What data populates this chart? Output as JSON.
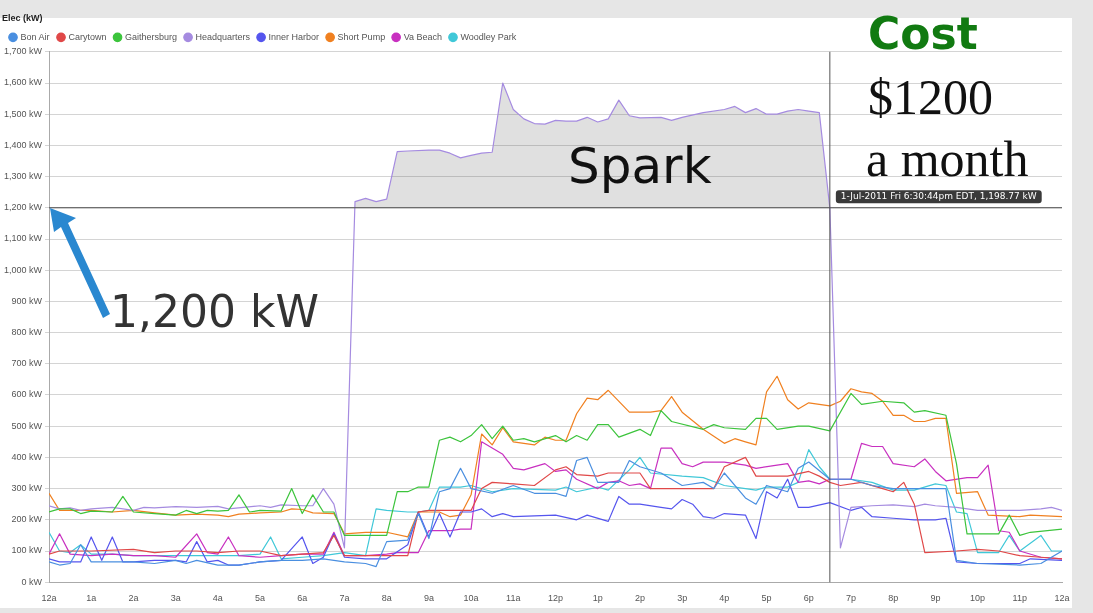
{
  "chart_data": {
    "type": "line",
    "legend_title": "Elec (kW)",
    "legend": "top left",
    "grid": "y",
    "marker": "none",
    "xlim": [
      "2011-07-01T00:00",
      "2011-07-02T00:00"
    ],
    "xticks": [
      {
        "value": "2011-07-01T00:00",
        "label": "12a"
      },
      {
        "value": "2011-07-01T01:00",
        "label": "1a"
      },
      {
        "value": "2011-07-01T02:00",
        "label": "2a"
      },
      {
        "value": "2011-07-01T03:00",
        "label": "3a"
      },
      {
        "value": "2011-07-01T04:00",
        "label": "4a"
      },
      {
        "value": "2011-07-01T05:00",
        "label": "5a"
      },
      {
        "value": "2011-07-01T06:00",
        "label": "6a"
      },
      {
        "value": "2011-07-01T07:00",
        "label": "7a"
      },
      {
        "value": "2011-07-01T08:00",
        "label": "8a"
      },
      {
        "value": "2011-07-01T09:00",
        "label": "9a"
      },
      {
        "value": "2011-07-01T10:00",
        "label": "10a"
      },
      {
        "value": "2011-07-01T11:00",
        "label": "11a"
      },
      {
        "value": "2011-07-01T12:00",
        "label": "12p"
      },
      {
        "value": "2011-07-01T13:00",
        "label": "1p"
      },
      {
        "value": "2011-07-01T14:00",
        "label": "2p"
      },
      {
        "value": "2011-07-01T15:00",
        "label": "3p"
      },
      {
        "value": "2011-07-01T16:00",
        "label": "4p"
      },
      {
        "value": "2011-07-01T17:00",
        "label": "5p"
      },
      {
        "value": "2011-07-01T18:00",
        "label": "6p"
      },
      {
        "value": "2011-07-01T19:00",
        "label": "7p"
      },
      {
        "value": "2011-07-01T20:00",
        "label": "8p"
      },
      {
        "value": "2011-07-01T21:00",
        "label": "9p"
      },
      {
        "value": "2011-07-01T22:00",
        "label": "10p"
      },
      {
        "value": "2011-07-01T23:00",
        "label": "11p"
      },
      {
        "value": "2011-07-02T00:00",
        "label": "12a"
      }
    ],
    "ylim": [
      0,
      1700
    ],
    "yticks": [
      {
        "value": 0,
        "label": "0 kW"
      },
      {
        "value": 100,
        "label": "100 kW"
      },
      {
        "value": 200,
        "label": "200 kW"
      },
      {
        "value": 300,
        "label": "300 kW"
      },
      {
        "value": 400,
        "label": "400 kW"
      },
      {
        "value": 500,
        "label": "500 kW"
      },
      {
        "value": 600,
        "label": "600 kW"
      },
      {
        "value": 700,
        "label": "700 kW"
      },
      {
        "value": 800,
        "label": "800 kW"
      },
      {
        "value": 900,
        "label": "900 kW"
      },
      {
        "value": 1000,
        "label": "1,000 kW"
      },
      {
        "value": 1100,
        "label": "1,100 kW"
      },
      {
        "value": 1200,
        "label": "1,200 kW"
      },
      {
        "value": 1300,
        "label": "1,300 kW"
      },
      {
        "value": 1400,
        "label": "1,400 kW"
      },
      {
        "value": 1500,
        "label": "1,500 kW"
      },
      {
        "value": 1600,
        "label": "1,600 kW"
      },
      {
        "value": 1700,
        "label": "1,700 kW"
      }
    ],
    "series": [
      {
        "name": "Bon Air",
        "color": "#4a8fe0",
        "x": [
          "2011-07-01T00:00",
          "2011-07-01T00:15",
          "2011-07-01T00:30",
          "2011-07-01T00:45",
          "2011-07-01T01:00",
          "2011-07-01T01:30",
          "2011-07-01T02:00",
          "2011-07-01T02:30",
          "2011-07-01T03:00",
          "2011-07-01T03:15",
          "2011-07-01T03:30",
          "2011-07-01T04:00",
          "2011-07-01T04:30",
          "2011-07-01T05:00",
          "2011-07-01T05:30",
          "2011-07-01T06:00",
          "2011-07-01T06:30",
          "2011-07-01T07:00",
          "2011-07-01T07:30",
          "2011-07-01T07:45",
          "2011-07-01T08:00",
          "2011-07-01T08:30",
          "2011-07-01T08:45",
          "2011-07-01T09:00",
          "2011-07-01T09:15",
          "2011-07-01T09:30",
          "2011-07-01T09:45",
          "2011-07-01T10:00",
          "2011-07-01T10:30",
          "2011-07-01T11:00",
          "2011-07-01T11:30",
          "2011-07-01T12:00",
          "2011-07-01T12:15",
          "2011-07-01T12:30",
          "2011-07-01T12:45",
          "2011-07-01T13:00",
          "2011-07-01T13:30",
          "2011-07-01T13:45",
          "2011-07-01T14:00",
          "2011-07-01T14:30",
          "2011-07-01T15:00",
          "2011-07-01T15:30",
          "2011-07-01T15:45",
          "2011-07-01T16:00",
          "2011-07-01T16:30",
          "2011-07-01T16:45",
          "2011-07-01T17:00",
          "2011-07-01T17:30",
          "2011-07-01T17:45",
          "2011-07-01T18:00",
          "2011-07-01T18:30",
          "2011-07-01T19:00",
          "2011-07-01T19:30",
          "2011-07-01T20:00",
          "2011-07-01T20:30",
          "2011-07-01T21:00",
          "2011-07-01T21:15",
          "2011-07-01T21:30",
          "2011-07-01T22:00",
          "2011-07-01T23:00",
          "2011-07-01T23:30",
          "2011-07-02T00:00"
        ],
        "values": [
          65,
          55,
          60,
          120,
          65,
          65,
          65,
          60,
          70,
          60,
          70,
          55,
          55,
          65,
          70,
          70,
          75,
          65,
          60,
          50,
          130,
          135,
          220,
          140,
          290,
          300,
          365,
          300,
          285,
          310,
          285,
          285,
          275,
          390,
          400,
          320,
          320,
          390,
          370,
          350,
          310,
          320,
          300,
          350,
          270,
          250,
          310,
          290,
          365,
          385,
          330,
          330,
          310,
          300,
          300,
          300,
          300,
          70,
          60,
          55,
          60,
          100
        ]
      },
      {
        "name": "Carytown",
        "color": "#e04848",
        "x": [
          "2011-07-01T00:00",
          "2011-07-01T00:15",
          "2011-07-01T01:00",
          "2011-07-01T02:00",
          "2011-07-01T02:30",
          "2011-07-01T03:00",
          "2011-07-01T03:30",
          "2011-07-01T04:00",
          "2011-07-01T04:30",
          "2011-07-01T05:00",
          "2011-07-01T05:30",
          "2011-07-01T06:00",
          "2011-07-01T06:30",
          "2011-07-01T06:45",
          "2011-07-01T07:00",
          "2011-07-01T07:30",
          "2011-07-01T08:00",
          "2011-07-01T08:30",
          "2011-07-01T08:45",
          "2011-07-01T09:00",
          "2011-07-01T09:30",
          "2011-07-01T10:00",
          "2011-07-01T10:15",
          "2011-07-01T10:30",
          "2011-07-01T11:00",
          "2011-07-01T11:30",
          "2011-07-01T12:00",
          "2011-07-01T12:15",
          "2011-07-01T12:30",
          "2011-07-01T13:00",
          "2011-07-01T13:15",
          "2011-07-01T14:00",
          "2011-07-01T14:15",
          "2011-07-01T15:00",
          "2011-07-01T15:45",
          "2011-07-01T16:00",
          "2011-07-01T16:30",
          "2011-07-01T16:45",
          "2011-07-01T17:30",
          "2011-07-01T18:00",
          "2011-07-01T18:15",
          "2011-07-01T18:30",
          "2011-07-01T18:45",
          "2011-07-01T19:15",
          "2011-07-01T19:45",
          "2011-07-01T20:00",
          "2011-07-01T20:15",
          "2011-07-01T20:30",
          "2011-07-01T20:45",
          "2011-07-01T21:30",
          "2011-07-01T22:00",
          "2011-07-01T22:30",
          "2011-07-01T23:00",
          "2011-07-01T23:30",
          "2011-07-02T00:00"
        ],
        "values": [
          90,
          100,
          100,
          105,
          95,
          100,
          100,
          95,
          100,
          100,
          85,
          90,
          95,
          150,
          85,
          85,
          85,
          85,
          225,
          230,
          230,
          230,
          300,
          320,
          315,
          310,
          360,
          370,
          345,
          340,
          350,
          350,
          300,
          300,
          300,
          370,
          400,
          340,
          340,
          355,
          340,
          320,
          310,
          320,
          300,
          290,
          320,
          250,
          95,
          100,
          105,
          100,
          85,
          80,
          75
        ]
      },
      {
        "name": "Gaithersburg",
        "color": "#3cc43c",
        "x": [
          "2011-07-01T00:00",
          "2011-07-01T00:15",
          "2011-07-01T00:30",
          "2011-07-01T00:45",
          "2011-07-01T01:00",
          "2011-07-01T01:30",
          "2011-07-01T01:45",
          "2011-07-01T02:00",
          "2011-07-01T02:30",
          "2011-07-01T03:00",
          "2011-07-01T03:15",
          "2011-07-01T03:30",
          "2011-07-01T03:45",
          "2011-07-01T04:00",
          "2011-07-01T04:15",
          "2011-07-01T04:30",
          "2011-07-01T04:45",
          "2011-07-01T05:00",
          "2011-07-01T05:30",
          "2011-07-01T05:45",
          "2011-07-01T06:00",
          "2011-07-01T06:15",
          "2011-07-01T06:30",
          "2011-07-01T06:45",
          "2011-07-01T07:00",
          "2011-07-01T07:30",
          "2011-07-01T08:00",
          "2011-07-01T08:15",
          "2011-07-01T08:30",
          "2011-07-01T08:45",
          "2011-07-01T09:00",
          "2011-07-01T09:15",
          "2011-07-01T09:30",
          "2011-07-01T09:45",
          "2011-07-01T10:00",
          "2011-07-01T10:15",
          "2011-07-01T10:30",
          "2011-07-01T10:45",
          "2011-07-01T11:00",
          "2011-07-01T11:15",
          "2011-07-01T11:30",
          "2011-07-01T12:00",
          "2011-07-01T12:15",
          "2011-07-01T12:30",
          "2011-07-01T12:45",
          "2011-07-01T13:00",
          "2011-07-01T13:15",
          "2011-07-01T13:30",
          "2011-07-01T14:00",
          "2011-07-01T14:15",
          "2011-07-01T14:30",
          "2011-07-01T14:45",
          "2011-07-01T15:30",
          "2011-07-01T15:45",
          "2011-07-01T16:00",
          "2011-07-01T16:30",
          "2011-07-01T16:45",
          "2011-07-01T17:00",
          "2011-07-01T17:15",
          "2011-07-01T17:45",
          "2011-07-01T18:00",
          "2011-07-01T18:30",
          "2011-07-01T19:00",
          "2011-07-01T19:15",
          "2011-07-01T19:45",
          "2011-07-01T20:15",
          "2011-07-01T20:30",
          "2011-07-01T20:45",
          "2011-07-01T21:15",
          "2011-07-01T21:30",
          "2011-07-01T21:45",
          "2011-07-01T22:30",
          "2011-07-01T22:45",
          "2011-07-01T23:00",
          "2011-07-01T23:15",
          "2011-07-02T00:00"
        ],
        "values": [
          225,
          235,
          235,
          220,
          228,
          225,
          275,
          225,
          220,
          215,
          230,
          220,
          230,
          228,
          230,
          280,
          225,
          230,
          228,
          300,
          220,
          280,
          225,
          225,
          150,
          150,
          150,
          290,
          290,
          305,
          305,
          455,
          465,
          450,
          470,
          505,
          460,
          500,
          455,
          460,
          450,
          470,
          450,
          470,
          455,
          505,
          505,
          465,
          490,
          470,
          550,
          515,
          490,
          505,
          495,
          490,
          525,
          525,
          490,
          500,
          500,
          485,
          605,
          570,
          580,
          575,
          545,
          550,
          535,
          380,
          155,
          155,
          215,
          150,
          160,
          170
        ]
      },
      {
        "name": "Headquarters",
        "color": "#a58be0",
        "x": [
          "2011-07-01T00:00",
          "2011-07-01T00:15",
          "2011-07-01T00:30",
          "2011-07-01T00:45",
          "2011-07-01T01:00",
          "2011-07-01T01:30",
          "2011-07-01T02:00",
          "2011-07-01T02:15",
          "2011-07-01T02:30",
          "2011-07-01T03:00",
          "2011-07-01T03:30",
          "2011-07-01T04:00",
          "2011-07-01T04:15",
          "2011-07-01T05:00",
          "2011-07-01T05:15",
          "2011-07-01T05:30",
          "2011-07-01T06:00",
          "2011-07-01T06:15",
          "2011-07-01T06:30",
          "2011-07-01T06:45",
          "2011-07-01T07:00",
          "2011-07-01T07:15",
          "2011-07-01T07:30",
          "2011-07-01T07:45",
          "2011-07-01T08:00",
          "2011-07-01T08:15",
          "2011-07-01T08:30",
          "2011-07-01T09:00",
          "2011-07-01T09:15",
          "2011-07-01T09:30",
          "2011-07-01T09:45",
          "2011-07-01T10:00",
          "2011-07-01T10:15",
          "2011-07-01T10:30",
          "2011-07-01T10:45",
          "2011-07-01T11:00",
          "2011-07-01T11:15",
          "2011-07-01T11:30",
          "2011-07-01T11:45",
          "2011-07-01T12:00",
          "2011-07-01T12:15",
          "2011-07-01T12:30",
          "2011-07-01T12:45",
          "2011-07-01T13:00",
          "2011-07-01T13:15",
          "2011-07-01T13:30",
          "2011-07-01T13:45",
          "2011-07-01T14:00",
          "2011-07-01T14:30",
          "2011-07-01T14:45",
          "2011-07-01T15:00",
          "2011-07-01T15:30",
          "2011-07-01T16:00",
          "2011-07-01T16:15",
          "2011-07-01T16:30",
          "2011-07-01T16:45",
          "2011-07-01T17:00",
          "2011-07-01T17:15",
          "2011-07-01T17:30",
          "2011-07-01T17:45",
          "2011-07-01T18:00",
          "2011-07-01T18:15",
          "2011-07-01T18:30",
          "2011-07-01T18:45",
          "2011-07-01T19:00",
          "2011-07-01T19:30",
          "2011-07-01T20:00",
          "2011-07-01T20:30",
          "2011-07-01T20:45",
          "2011-07-01T21:00",
          "2011-07-01T21:30",
          "2011-07-01T22:00",
          "2011-07-01T23:00",
          "2011-07-01T23:30",
          "2011-07-01T23:45",
          "2011-07-02T00:00"
        ],
        "values": [
          245,
          235,
          238,
          230,
          235,
          240,
          230,
          240,
          238,
          242,
          240,
          243,
          235,
          245,
          240,
          248,
          245,
          245,
          300,
          250,
          110,
          1220,
          1230,
          1220,
          1228,
          1380,
          1382,
          1385,
          1385,
          1375,
          1360,
          1368,
          1375,
          1378,
          1600,
          1515,
          1485,
          1470,
          1468,
          1480,
          1478,
          1478,
          1490,
          1475,
          1485,
          1545,
          1495,
          1488,
          1490,
          1480,
          1490,
          1505,
          1515,
          1525,
          1505,
          1518,
          1500,
          1500,
          1510,
          1515,
          1510,
          1505,
          1199,
          110,
          240,
          245,
          248,
          242,
          250,
          245,
          240,
          230,
          230,
          235,
          240,
          230
        ]
      },
      {
        "name": "Inner Harbor",
        "color": "#5555ee",
        "x": [
          "2011-07-01T00:00",
          "2011-07-01T00:15",
          "2011-07-01T00:45",
          "2011-07-01T01:00",
          "2011-07-01T01:15",
          "2011-07-01T01:30",
          "2011-07-01T01:45",
          "2011-07-01T02:00",
          "2011-07-01T02:30",
          "2011-07-01T03:00",
          "2011-07-01T03:15",
          "2011-07-01T03:30",
          "2011-07-01T03:45",
          "2011-07-01T04:00",
          "2011-07-01T04:15",
          "2011-07-01T04:30",
          "2011-07-01T05:00",
          "2011-07-01T05:30",
          "2011-07-01T06:00",
          "2011-07-01T06:15",
          "2011-07-01T06:30",
          "2011-07-01T06:45",
          "2011-07-01T07:00",
          "2011-07-01T07:30",
          "2011-07-01T08:00",
          "2011-07-01T08:30",
          "2011-07-01T08:45",
          "2011-07-01T09:00",
          "2011-07-01T09:15",
          "2011-07-01T09:30",
          "2011-07-01T09:45",
          "2011-07-01T10:00",
          "2011-07-01T10:15",
          "2011-07-01T10:30",
          "2011-07-01T10:45",
          "2011-07-01T11:00",
          "2011-07-01T12:00",
          "2011-07-01T12:30",
          "2011-07-01T12:45",
          "2011-07-01T13:15",
          "2011-07-01T13:30",
          "2011-07-01T13:45",
          "2011-07-01T14:00",
          "2011-07-01T14:30",
          "2011-07-01T14:45",
          "2011-07-01T15:00",
          "2011-07-01T15:15",
          "2011-07-01T15:30",
          "2011-07-01T15:45",
          "2011-07-01T16:00",
          "2011-07-01T16:30",
          "2011-07-01T16:45",
          "2011-07-01T17:00",
          "2011-07-01T17:15",
          "2011-07-01T17:30",
          "2011-07-01T17:45",
          "2011-07-01T18:00",
          "2011-07-01T18:30",
          "2011-07-01T19:00",
          "2011-07-01T19:15",
          "2011-07-01T19:30",
          "2011-07-01T20:00",
          "2011-07-01T20:30",
          "2011-07-01T21:00",
          "2011-07-01T21:15",
          "2011-07-01T21:30",
          "2011-07-01T22:00",
          "2011-07-01T23:00",
          "2011-07-01T23:15",
          "2011-07-02T00:00"
        ],
        "values": [
          75,
          65,
          65,
          145,
          70,
          145,
          65,
          65,
          70,
          70,
          65,
          130,
          65,
          70,
          55,
          55,
          65,
          70,
          145,
          60,
          80,
          155,
          80,
          75,
          75,
          120,
          225,
          145,
          220,
          145,
          225,
          225,
          235,
          210,
          220,
          210,
          215,
          200,
          215,
          195,
          275,
          250,
          250,
          240,
          235,
          265,
          250,
          210,
          205,
          220,
          215,
          140,
          290,
          270,
          330,
          240,
          240,
          255,
          230,
          240,
          210,
          205,
          200,
          200,
          205,
          65,
          60,
          60,
          75,
          70
        ]
      },
      {
        "name": "Short Pump",
        "color": "#f08020",
        "x": [
          "2011-07-01T00:00",
          "2011-07-01T00:15",
          "2011-07-01T01:00",
          "2011-07-01T01:30",
          "2011-07-01T02:00",
          "2011-07-01T02:30",
          "2011-07-01T03:00",
          "2011-07-01T03:30",
          "2011-07-01T04:00",
          "2011-07-01T04:15",
          "2011-07-01T04:30",
          "2011-07-01T05:00",
          "2011-07-01T05:30",
          "2011-07-01T05:45",
          "2011-07-01T06:00",
          "2011-07-01T06:15",
          "2011-07-01T06:45",
          "2011-07-01T07:00",
          "2011-07-01T07:30",
          "2011-07-01T08:00",
          "2011-07-01T08:30",
          "2011-07-01T08:45",
          "2011-07-01T09:15",
          "2011-07-01T09:30",
          "2011-07-01T09:45",
          "2011-07-01T10:00",
          "2011-07-01T10:15",
          "2011-07-01T10:30",
          "2011-07-01T10:45",
          "2011-07-01T11:00",
          "2011-07-01T11:30",
          "2011-07-01T11:45",
          "2011-07-01T12:00",
          "2011-07-01T12:15",
          "2011-07-01T12:30",
          "2011-07-01T12:45",
          "2011-07-01T13:00",
          "2011-07-01T13:15",
          "2011-07-01T13:45",
          "2011-07-01T14:15",
          "2011-07-01T14:30",
          "2011-07-01T14:45",
          "2011-07-01T15:00",
          "2011-07-01T15:30",
          "2011-07-01T16:00",
          "2011-07-01T16:15",
          "2011-07-01T16:30",
          "2011-07-01T16:45",
          "2011-07-01T17:00",
          "2011-07-01T17:15",
          "2011-07-01T17:30",
          "2011-07-01T17:45",
          "2011-07-01T18:00",
          "2011-07-01T18:30",
          "2011-07-01T18:45",
          "2011-07-01T19:00",
          "2011-07-01T19:15",
          "2011-07-01T19:30",
          "2011-07-01T19:45",
          "2011-07-01T20:00",
          "2011-07-01T20:15",
          "2011-07-01T20:30",
          "2011-07-01T20:45",
          "2011-07-01T21:00",
          "2011-07-01T21:15",
          "2011-07-01T21:30",
          "2011-07-01T22:00",
          "2011-07-01T22:15",
          "2011-07-01T23:00",
          "2011-07-01T23:15",
          "2011-07-02T00:00"
        ],
        "values": [
          285,
          230,
          230,
          225,
          230,
          222,
          215,
          218,
          215,
          210,
          218,
          222,
          225,
          235,
          233,
          222,
          220,
          155,
          160,
          160,
          145,
          225,
          225,
          210,
          215,
          280,
          475,
          440,
          495,
          450,
          440,
          465,
          455,
          455,
          540,
          590,
          585,
          615,
          545,
          545,
          550,
          595,
          545,
          490,
          445,
          460,
          450,
          440,
          610,
          660,
          585,
          555,
          575,
          565,
          580,
          620,
          610,
          605,
          580,
          535,
          535,
          515,
          515,
          525,
          525,
          285,
          290,
          215,
          210,
          215,
          210
        ]
      },
      {
        "name": "Va Beach",
        "color": "#c830c0",
        "x": [
          "2011-07-01T00:00",
          "2011-07-01T00:15",
          "2011-07-01T00:30",
          "2011-07-01T01:00",
          "2011-07-01T01:30",
          "2011-07-01T02:00",
          "2011-07-01T02:30",
          "2011-07-01T03:00",
          "2011-07-01T03:30",
          "2011-07-01T03:45",
          "2011-07-01T04:00",
          "2011-07-01T04:15",
          "2011-07-01T04:30",
          "2011-07-01T05:00",
          "2011-07-01T05:30",
          "2011-07-01T06:00",
          "2011-07-01T06:30",
          "2011-07-01T06:45",
          "2011-07-01T07:00",
          "2011-07-01T07:30",
          "2011-07-01T08:00",
          "2011-07-01T08:15",
          "2011-07-01T08:45",
          "2011-07-01T09:00",
          "2011-07-01T09:30",
          "2011-07-01T09:45",
          "2011-07-01T10:00",
          "2011-07-01T10:15",
          "2011-07-01T10:30",
          "2011-07-01T10:45",
          "2011-07-01T11:00",
          "2011-07-01T11:15",
          "2011-07-01T11:45",
          "2011-07-01T12:00",
          "2011-07-01T12:15",
          "2011-07-01T12:30",
          "2011-07-01T13:00",
          "2011-07-01T13:15",
          "2011-07-01T13:30",
          "2011-07-01T13:45",
          "2011-07-01T14:00",
          "2011-07-01T14:15",
          "2011-07-01T14:30",
          "2011-07-01T14:45",
          "2011-07-01T15:00",
          "2011-07-01T15:15",
          "2011-07-01T15:30",
          "2011-07-01T15:45",
          "2011-07-01T16:00",
          "2011-07-01T16:30",
          "2011-07-01T16:45",
          "2011-07-01T17:15",
          "2011-07-01T17:30",
          "2011-07-01T17:45",
          "2011-07-01T18:00",
          "2011-07-01T18:15",
          "2011-07-01T18:30",
          "2011-07-01T19:00",
          "2011-07-01T19:15",
          "2011-07-01T19:30",
          "2011-07-01T19:45",
          "2011-07-01T20:00",
          "2011-07-01T20:30",
          "2011-07-01T20:45",
          "2011-07-01T21:00",
          "2011-07-01T21:15",
          "2011-07-01T21:45",
          "2011-07-01T22:00",
          "2011-07-01T22:15",
          "2011-07-01T22:30",
          "2011-07-01T22:45",
          "2011-07-01T23:00",
          "2011-07-01T23:30",
          "2011-07-02T00:00"
        ],
        "values": [
          90,
          155,
          90,
          85,
          90,
          85,
          85,
          80,
          155,
          95,
          90,
          145,
          85,
          80,
          85,
          90,
          90,
          160,
          85,
          85,
          90,
          95,
          95,
          165,
          165,
          170,
          170,
          450,
          430,
          410,
          365,
          360,
          380,
          355,
          360,
          330,
          300,
          320,
          325,
          310,
          315,
          300,
          430,
          430,
          380,
          370,
          385,
          385,
          385,
          375,
          365,
          375,
          380,
          320,
          325,
          315,
          330,
          330,
          445,
          435,
          435,
          380,
          370,
          395,
          355,
          325,
          335,
          335,
          375,
          165,
          160,
          100,
          80,
          75
        ]
      },
      {
        "name": "Woodley Park",
        "color": "#40c8d8",
        "x": [
          "2011-07-01T00:00",
          "2011-07-01T00:15",
          "2011-07-01T00:30",
          "2011-07-01T00:45",
          "2011-07-01T01:00",
          "2011-07-01T01:30",
          "2011-07-01T02:00",
          "2011-07-01T03:00",
          "2011-07-01T03:30",
          "2011-07-01T04:00",
          "2011-07-01T04:30",
          "2011-07-01T05:00",
          "2011-07-01T05:15",
          "2011-07-01T05:30",
          "2011-07-01T06:00",
          "2011-07-01T06:30",
          "2011-07-01T06:45",
          "2011-07-01T07:00",
          "2011-07-01T07:30",
          "2011-07-01T07:45",
          "2011-07-01T08:00",
          "2011-07-01T08:30",
          "2011-07-01T08:45",
          "2011-07-01T09:00",
          "2011-07-01T09:15",
          "2011-07-01T09:45",
          "2011-07-01T10:00",
          "2011-07-01T10:30",
          "2011-07-01T11:00",
          "2011-07-01T12:00",
          "2011-07-01T12:15",
          "2011-07-01T12:30",
          "2011-07-01T13:00",
          "2011-07-01T13:15",
          "2011-07-01T13:45",
          "2011-07-01T14:00",
          "2011-07-01T14:15",
          "2011-07-01T15:00",
          "2011-07-01T15:30",
          "2011-07-01T16:00",
          "2011-07-01T16:30",
          "2011-07-01T16:45",
          "2011-07-01T17:00",
          "2011-07-01T17:30",
          "2011-07-01T17:45",
          "2011-07-01T18:00",
          "2011-07-01T18:15",
          "2011-07-01T18:30",
          "2011-07-01T19:00",
          "2011-07-01T19:30",
          "2011-07-01T20:00",
          "2011-07-01T20:30",
          "2011-07-01T21:00",
          "2011-07-01T21:15",
          "2011-07-01T21:30",
          "2011-07-01T21:45",
          "2011-07-01T22:00",
          "2011-07-01T22:30",
          "2011-07-01T22:45",
          "2011-07-01T23:00",
          "2011-07-01T23:30",
          "2011-07-01T23:45",
          "2011-07-02T00:00"
        ],
        "values": [
          160,
          100,
          95,
          120,
          90,
          90,
          85,
          85,
          85,
          85,
          85,
          90,
          145,
          75,
          80,
          85,
          90,
          95,
          85,
          235,
          230,
          225,
          225,
          230,
          305,
          305,
          310,
          290,
          300,
          295,
          305,
          290,
          305,
          295,
          360,
          400,
          350,
          340,
          335,
          310,
          300,
          295,
          305,
          305,
          320,
          425,
          370,
          330,
          330,
          320,
          295,
          295,
          315,
          310,
          225,
          220,
          95,
          95,
          150,
          100,
          150,
          100,
          100
        ]
      }
    ],
    "ref_lines": [
      {
        "axis": "y",
        "value": 1200,
        "color": "#555555"
      },
      {
        "axis": "x",
        "value": "2011-07-01T18:30",
        "color": "#555555"
      }
    ],
    "annotations": [
      "Spark",
      "1,200 kW",
      "Cost",
      "$1200",
      "a month",
      {
        "text": "1-Jul-2011 Fri 6:30:44pm EDT, 1,198.77 kW",
        "x": "2011-07-01T18:30",
        "y": 1198.77
      }
    ]
  }
}
